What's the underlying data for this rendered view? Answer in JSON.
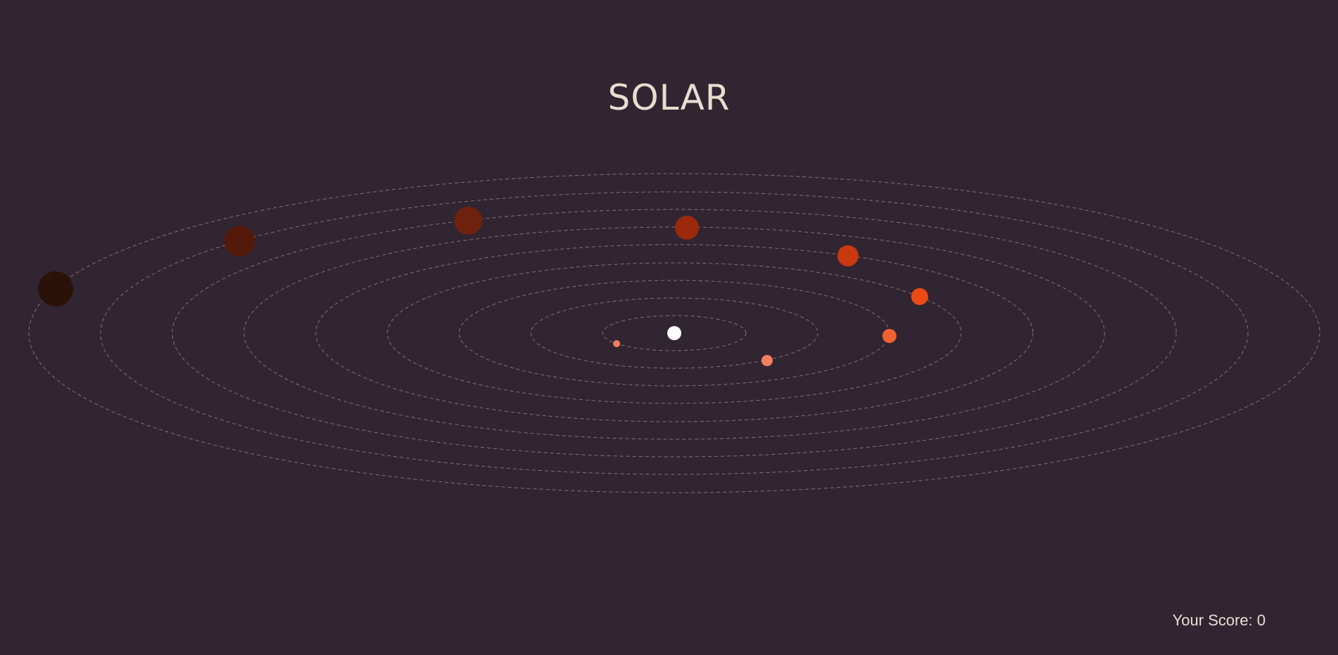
{
  "game": {
    "title": "SOLAR",
    "score_label": "Your Score: 0"
  },
  "colors": {
    "background": "#322532",
    "text": "#e9ddd0",
    "orbit": "#8c6f6c",
    "sun": "#ffffff"
  },
  "sun": {
    "name": "sun",
    "color": "#ffffff"
  },
  "planets": [
    {
      "name": "planet-1",
      "orbit": 1,
      "color": "#f47f5f"
    },
    {
      "name": "planet-2",
      "orbit": 2,
      "color": "#f47f5f"
    },
    {
      "name": "planet-3",
      "orbit": 3,
      "color": "#f06030"
    },
    {
      "name": "planet-4",
      "orbit": 4,
      "color": "#ec4a12"
    },
    {
      "name": "planet-5",
      "orbit": 5,
      "color": "#c9380e"
    },
    {
      "name": "planet-6",
      "orbit": 6,
      "color": "#9a2a0b"
    },
    {
      "name": "planet-7",
      "orbit": 7,
      "color": "#6e220e"
    },
    {
      "name": "planet-8",
      "orbit": 8,
      "color": "#531a0b"
    },
    {
      "name": "planet-9",
      "orbit": 9,
      "color": "#2a1209"
    }
  ]
}
